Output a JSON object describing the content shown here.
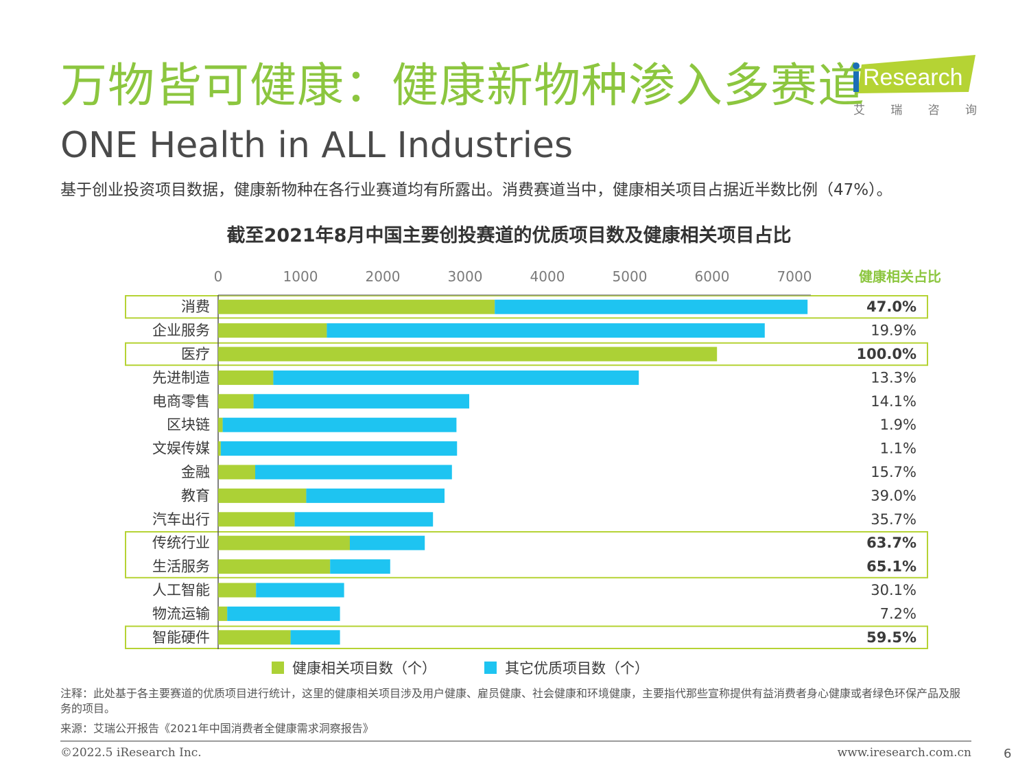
{
  "header": {
    "title_cn": "万物皆可健康：健康新物种渗入多赛道",
    "title_en": "ONE Health in ALL Industries",
    "subtitle": "基于创业投资项目数据，健康新物种在各行业赛道均有所露出。消费赛道当中，健康相关项目占据近半数比例（47%）。"
  },
  "logo": {
    "text": "iResearch",
    "cn_chars": [
      "艾",
      "瑞",
      "咨",
      "询"
    ]
  },
  "colors": {
    "accent_green": "#8cc63f",
    "health_bar": "#acd136",
    "other_bar": "#1ec4f1",
    "highlight_box": "#b5d334"
  },
  "chart_data": {
    "type": "bar",
    "orientation": "horizontal",
    "stacked": true,
    "title": "截至2021年8月中国主要创投赛道的优质项目数及健康相关项目占比",
    "ratio_header": "健康相关占比",
    "xlim": [
      0,
      7200
    ],
    "xticks": [
      0,
      1000,
      2000,
      3000,
      4000,
      5000,
      6000,
      7000
    ],
    "categories": [
      "消费",
      "企业服务",
      "医疗",
      "先进制造",
      "电商零售",
      "区块链",
      "文娱传媒",
      "金融",
      "教育",
      "汽车出行",
      "传统行业",
      "生活服务",
      "人工智能",
      "物流运输",
      "智能硬件"
    ],
    "series": [
      {
        "name": "健康相关项目数（个）",
        "values": [
          3360,
          1320,
          6060,
          670,
          430,
          55,
          32,
          450,
          1070,
          930,
          1600,
          1360,
          460,
          110,
          880
        ]
      },
      {
        "name": "其它优质项目数（个）",
        "values": [
          3800,
          5320,
          0,
          4440,
          2620,
          2840,
          2870,
          2390,
          1680,
          1680,
          910,
          730,
          1070,
          1370,
          600
        ]
      }
    ],
    "ratios": [
      "47.0%",
      "19.9%",
      "100.0%",
      "13.3%",
      "14.1%",
      "1.9%",
      "1.1%",
      "15.7%",
      "39.0%",
      "35.7%",
      "63.7%",
      "65.1%",
      "30.1%",
      "7.2%",
      "59.5%"
    ],
    "highlighted": [
      "消费",
      "医疗",
      "传统行业",
      "生活服务",
      "智能硬件"
    ]
  },
  "note": "注释：此处基于各主要赛道的优质项目进行统计，这里的健康相关项目涉及用户健康、雇员健康、社会健康和环境健康，主要指代那些宣称提供有益消费者身心健康或者绿色环保产品及服务的项目。",
  "source": "来源：艾瑞公开报告《2021年中国消费者全健康需求洞察报告》",
  "footer": {
    "copyright": "©2022.5 iResearch Inc.",
    "website": "www.iresearch.com.cn",
    "page": "6"
  }
}
